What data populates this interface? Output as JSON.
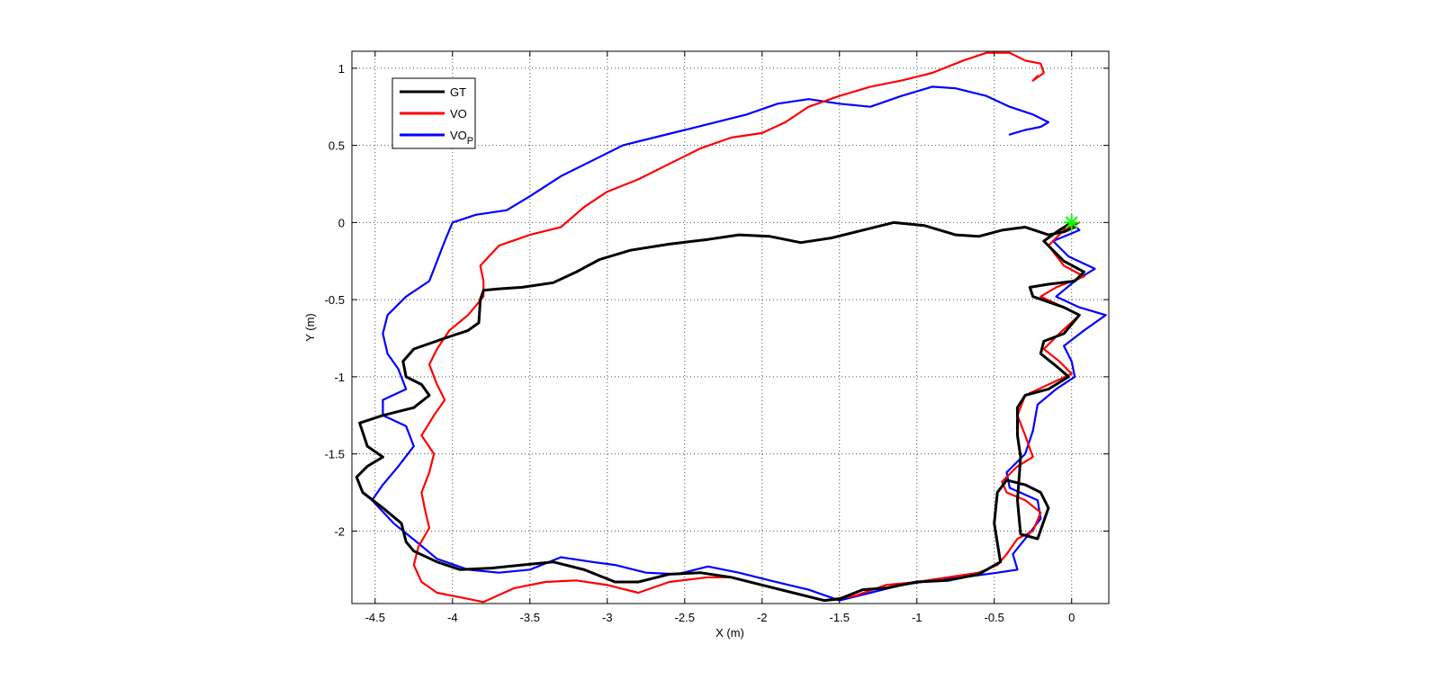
{
  "chart_data": {
    "type": "line",
    "xlabel": "X (m)",
    "ylabel": "Y (m)",
    "xlim": [
      -4.65,
      0.24
    ],
    "ylim": [
      -2.47,
      1.11
    ],
    "xticks": [
      -4.5,
      -4,
      -3.5,
      -3,
      -2.5,
      -2,
      -1.5,
      -1,
      -0.5,
      0
    ],
    "xtick_labels": [
      "-4.5",
      "-4",
      "-3.5",
      "-3",
      "-2.5",
      "-2",
      "-1.5",
      "-1",
      "-0.5",
      "0"
    ],
    "yticks": [
      -2,
      -1.5,
      -1,
      -0.5,
      0,
      0.5,
      1
    ],
    "ytick_labels": [
      "-2",
      "-1.5",
      "-1",
      "-0.5",
      "0",
      "0.5",
      "1"
    ],
    "grid": true,
    "legend": {
      "position": "top-left",
      "entries": [
        {
          "label": "GT",
          "color": "#000000"
        },
        {
          "label": "VO",
          "color": "#ff0000"
        },
        {
          "label": "VO",
          "subscript": "P",
          "color": "#0000ff"
        }
      ]
    },
    "start_marker": {
      "x": 0.0,
      "y": 0.0,
      "color": "#00ff00",
      "symbol": "*"
    },
    "series": [
      {
        "name": "GT",
        "color": "#000000",
        "points": [
          [
            0.0,
            0.0
          ],
          [
            0.02,
            -0.03
          ],
          [
            -0.05,
            -0.06
          ],
          [
            -0.15,
            -0.08
          ],
          [
            -0.3,
            -0.03
          ],
          [
            -0.45,
            -0.05
          ],
          [
            -0.6,
            -0.09
          ],
          [
            -0.75,
            -0.08
          ],
          [
            -0.95,
            -0.02
          ],
          [
            -1.15,
            0.0
          ],
          [
            -1.35,
            -0.05
          ],
          [
            -1.55,
            -0.1
          ],
          [
            -1.75,
            -0.13
          ],
          [
            -1.95,
            -0.09
          ],
          [
            -2.15,
            -0.08
          ],
          [
            -2.35,
            -0.11
          ],
          [
            -2.6,
            -0.14
          ],
          [
            -2.85,
            -0.18
          ],
          [
            -3.05,
            -0.24
          ],
          [
            -3.2,
            -0.32
          ],
          [
            -3.35,
            -0.39
          ],
          [
            -3.55,
            -0.42
          ],
          [
            -3.7,
            -0.43
          ],
          [
            -3.8,
            -0.44
          ],
          [
            -3.82,
            -0.5
          ],
          [
            -3.83,
            -0.65
          ],
          [
            -3.9,
            -0.7
          ],
          [
            -4.05,
            -0.75
          ],
          [
            -4.25,
            -0.82
          ],
          [
            -4.32,
            -0.9
          ],
          [
            -4.3,
            -1.0
          ],
          [
            -4.2,
            -1.05
          ],
          [
            -4.15,
            -1.12
          ],
          [
            -4.25,
            -1.2
          ],
          [
            -4.45,
            -1.25
          ],
          [
            -4.6,
            -1.3
          ],
          [
            -4.55,
            -1.45
          ],
          [
            -4.45,
            -1.52
          ],
          [
            -4.55,
            -1.58
          ],
          [
            -4.62,
            -1.65
          ],
          [
            -4.58,
            -1.75
          ],
          [
            -4.45,
            -1.85
          ],
          [
            -4.33,
            -1.95
          ],
          [
            -4.3,
            -2.07
          ],
          [
            -4.25,
            -2.13
          ],
          [
            -4.1,
            -2.2
          ],
          [
            -3.95,
            -2.25
          ],
          [
            -3.75,
            -2.24
          ],
          [
            -3.55,
            -2.22
          ],
          [
            -3.35,
            -2.2
          ],
          [
            -3.15,
            -2.25
          ],
          [
            -2.95,
            -2.33
          ],
          [
            -2.8,
            -2.33
          ],
          [
            -2.6,
            -2.28
          ],
          [
            -2.4,
            -2.27
          ],
          [
            -2.2,
            -2.3
          ],
          [
            -2.0,
            -2.35
          ],
          [
            -1.8,
            -2.4
          ],
          [
            -1.6,
            -2.45
          ],
          [
            -1.5,
            -2.44
          ],
          [
            -1.35,
            -2.38
          ],
          [
            -1.2,
            -2.37
          ],
          [
            -1.0,
            -2.33
          ],
          [
            -0.8,
            -2.32
          ],
          [
            -0.6,
            -2.28
          ],
          [
            -0.46,
            -2.2
          ],
          [
            -0.5,
            -1.95
          ],
          [
            -0.48,
            -1.75
          ],
          [
            -0.42,
            -1.67
          ],
          [
            -0.3,
            -1.7
          ],
          [
            -0.2,
            -1.75
          ],
          [
            -0.15,
            -1.85
          ],
          [
            -0.22,
            -2.05
          ],
          [
            -0.33,
            -2.02
          ],
          [
            -0.35,
            -1.8
          ],
          [
            -0.33,
            -1.52
          ],
          [
            -0.35,
            -1.38
          ],
          [
            -0.35,
            -1.2
          ],
          [
            -0.3,
            -1.12
          ],
          [
            -0.15,
            -1.08
          ],
          [
            -0.02,
            -1.0
          ],
          [
            -0.1,
            -0.93
          ],
          [
            -0.2,
            -0.85
          ],
          [
            -0.18,
            -0.77
          ],
          [
            -0.05,
            -0.72
          ],
          [
            0.05,
            -0.6
          ],
          [
            -0.05,
            -0.55
          ],
          [
            -0.25,
            -0.48
          ],
          [
            -0.27,
            -0.42
          ],
          [
            -0.15,
            -0.4
          ],
          [
            0.02,
            -0.38
          ],
          [
            0.08,
            -0.32
          ],
          [
            -0.05,
            -0.25
          ],
          [
            -0.18,
            -0.12
          ],
          [
            -0.08,
            -0.05
          ],
          [
            0.0,
            0.0
          ]
        ]
      },
      {
        "name": "VO",
        "color": "#ff0000",
        "points": [
          [
            0.05,
            0.0
          ],
          [
            -0.05,
            -0.05
          ],
          [
            -0.15,
            -0.15
          ],
          [
            -0.05,
            -0.28
          ],
          [
            0.08,
            -0.35
          ],
          [
            -0.1,
            -0.42
          ],
          [
            -0.2,
            -0.48
          ],
          [
            -0.05,
            -0.55
          ],
          [
            0.05,
            -0.6
          ],
          [
            -0.08,
            -0.72
          ],
          [
            -0.18,
            -0.82
          ],
          [
            -0.08,
            -0.9
          ],
          [
            0.0,
            -0.98
          ],
          [
            -0.15,
            -1.05
          ],
          [
            -0.3,
            -1.12
          ],
          [
            -0.35,
            -1.25
          ],
          [
            -0.3,
            -1.38
          ],
          [
            -0.25,
            -1.52
          ],
          [
            -0.35,
            -1.58
          ],
          [
            -0.45,
            -1.68
          ],
          [
            -0.42,
            -1.75
          ],
          [
            -0.3,
            -1.8
          ],
          [
            -0.2,
            -1.88
          ],
          [
            -0.25,
            -2.0
          ],
          [
            -0.35,
            -2.05
          ],
          [
            -0.42,
            -2.15
          ],
          [
            -0.48,
            -2.22
          ],
          [
            -0.6,
            -2.27
          ],
          [
            -0.8,
            -2.3
          ],
          [
            -1.0,
            -2.33
          ],
          [
            -1.2,
            -2.35
          ],
          [
            -1.4,
            -2.42
          ],
          [
            -1.6,
            -2.45
          ],
          [
            -1.8,
            -2.4
          ],
          [
            -2.0,
            -2.35
          ],
          [
            -2.2,
            -2.3
          ],
          [
            -2.35,
            -2.3
          ],
          [
            -2.6,
            -2.33
          ],
          [
            -2.8,
            -2.4
          ],
          [
            -3.0,
            -2.35
          ],
          [
            -3.2,
            -2.32
          ],
          [
            -3.4,
            -2.33
          ],
          [
            -3.6,
            -2.37
          ],
          [
            -3.8,
            -2.46
          ],
          [
            -3.95,
            -2.43
          ],
          [
            -4.1,
            -2.4
          ],
          [
            -4.2,
            -2.33
          ],
          [
            -4.25,
            -2.22
          ],
          [
            -4.22,
            -2.1
          ],
          [
            -4.15,
            -1.98
          ],
          [
            -4.18,
            -1.85
          ],
          [
            -4.2,
            -1.75
          ],
          [
            -4.15,
            -1.62
          ],
          [
            -4.12,
            -1.5
          ],
          [
            -4.2,
            -1.38
          ],
          [
            -4.12,
            -1.25
          ],
          [
            -4.05,
            -1.15
          ],
          [
            -4.1,
            -1.05
          ],
          [
            -4.15,
            -0.92
          ],
          [
            -4.1,
            -0.82
          ],
          [
            -4.02,
            -0.7
          ],
          [
            -3.9,
            -0.6
          ],
          [
            -3.8,
            -0.48
          ],
          [
            -3.8,
            -0.38
          ],
          [
            -3.82,
            -0.28
          ],
          [
            -3.7,
            -0.15
          ],
          [
            -3.5,
            -0.08
          ],
          [
            -3.3,
            -0.03
          ],
          [
            -3.15,
            0.1
          ],
          [
            -3.0,
            0.2
          ],
          [
            -2.8,
            0.28
          ],
          [
            -2.6,
            0.38
          ],
          [
            -2.4,
            0.48
          ],
          [
            -2.2,
            0.55
          ],
          [
            -2.0,
            0.58
          ],
          [
            -1.85,
            0.65
          ],
          [
            -1.7,
            0.75
          ],
          [
            -1.5,
            0.82
          ],
          [
            -1.3,
            0.88
          ],
          [
            -1.1,
            0.92
          ],
          [
            -0.9,
            0.97
          ],
          [
            -0.7,
            1.05
          ],
          [
            -0.55,
            1.1
          ],
          [
            -0.4,
            1.1
          ],
          [
            -0.3,
            1.05
          ],
          [
            -0.2,
            1.03
          ],
          [
            -0.18,
            0.97
          ],
          [
            -0.25,
            0.92
          ],
          [
            -0.22,
            0.95
          ]
        ]
      },
      {
        "name": "VOP",
        "color": "#0000ff",
        "points": [
          [
            0.0,
            0.0
          ],
          [
            0.05,
            -0.05
          ],
          [
            -0.12,
            -0.12
          ],
          [
            -0.02,
            -0.22
          ],
          [
            0.15,
            -0.3
          ],
          [
            0.02,
            -0.38
          ],
          [
            -0.1,
            -0.48
          ],
          [
            0.05,
            -0.55
          ],
          [
            0.22,
            -0.6
          ],
          [
            0.08,
            -0.7
          ],
          [
            -0.05,
            -0.8
          ],
          [
            0.0,
            -0.9
          ],
          [
            0.02,
            -1.0
          ],
          [
            -0.1,
            -1.08
          ],
          [
            -0.22,
            -1.18
          ],
          [
            -0.25,
            -1.35
          ],
          [
            -0.3,
            -1.5
          ],
          [
            -0.42,
            -1.62
          ],
          [
            -0.4,
            -1.72
          ],
          [
            -0.22,
            -1.8
          ],
          [
            -0.2,
            -1.92
          ],
          [
            -0.3,
            -2.05
          ],
          [
            -0.38,
            -2.15
          ],
          [
            -0.35,
            -2.25
          ],
          [
            -0.48,
            -2.27
          ],
          [
            -0.7,
            -2.3
          ],
          [
            -0.9,
            -2.32
          ],
          [
            -1.1,
            -2.35
          ],
          [
            -1.3,
            -2.4
          ],
          [
            -1.5,
            -2.45
          ],
          [
            -1.7,
            -2.38
          ],
          [
            -1.95,
            -2.32
          ],
          [
            -2.15,
            -2.27
          ],
          [
            -2.35,
            -2.23
          ],
          [
            -2.55,
            -2.28
          ],
          [
            -2.75,
            -2.27
          ],
          [
            -2.95,
            -2.22
          ],
          [
            -3.1,
            -2.2
          ],
          [
            -3.3,
            -2.17
          ],
          [
            -3.5,
            -2.25
          ],
          [
            -3.7,
            -2.27
          ],
          [
            -3.9,
            -2.25
          ],
          [
            -4.1,
            -2.18
          ],
          [
            -4.22,
            -2.08
          ],
          [
            -4.38,
            -1.95
          ],
          [
            -4.52,
            -1.8
          ],
          [
            -4.45,
            -1.7
          ],
          [
            -4.35,
            -1.58
          ],
          [
            -4.25,
            -1.45
          ],
          [
            -4.3,
            -1.32
          ],
          [
            -4.45,
            -1.25
          ],
          [
            -4.45,
            -1.15
          ],
          [
            -4.3,
            -1.08
          ],
          [
            -4.35,
            -0.95
          ],
          [
            -4.42,
            -0.85
          ],
          [
            -4.45,
            -0.72
          ],
          [
            -4.42,
            -0.6
          ],
          [
            -4.3,
            -0.48
          ],
          [
            -4.15,
            -0.38
          ],
          [
            -4.1,
            -0.25
          ],
          [
            -4.05,
            -0.12
          ],
          [
            -4.0,
            0.0
          ],
          [
            -3.85,
            0.05
          ],
          [
            -3.65,
            0.08
          ],
          [
            -3.5,
            0.17
          ],
          [
            -3.3,
            0.3
          ],
          [
            -3.1,
            0.4
          ],
          [
            -2.9,
            0.5
          ],
          [
            -2.7,
            0.55
          ],
          [
            -2.5,
            0.6
          ],
          [
            -2.3,
            0.65
          ],
          [
            -2.1,
            0.7
          ],
          [
            -1.9,
            0.77
          ],
          [
            -1.7,
            0.8
          ],
          [
            -1.5,
            0.77
          ],
          [
            -1.3,
            0.75
          ],
          [
            -1.1,
            0.82
          ],
          [
            -0.9,
            0.88
          ],
          [
            -0.75,
            0.87
          ],
          [
            -0.55,
            0.82
          ],
          [
            -0.4,
            0.75
          ],
          [
            -0.25,
            0.7
          ],
          [
            -0.15,
            0.65
          ],
          [
            -0.2,
            0.62
          ],
          [
            -0.3,
            0.6
          ],
          [
            -0.4,
            0.57
          ]
        ]
      }
    ]
  }
}
